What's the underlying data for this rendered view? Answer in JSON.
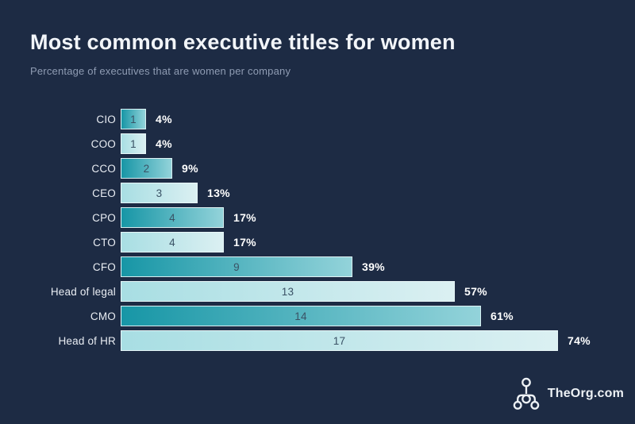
{
  "header": {
    "title": "Most common executive titles for women",
    "subtitle": "Percentage of executives that are women per company"
  },
  "chart_data": {
    "type": "bar",
    "orientation": "horizontal",
    "title": "Most common executive titles for women",
    "subtitle": "Percentage of executives that are women per company",
    "categories": [
      "CIO",
      "COO",
      "CCO",
      "CEO",
      "CPO",
      "CTO",
      "CFO",
      "Head of legal",
      "CMO",
      "Head of HR"
    ],
    "values": [
      1,
      1,
      2,
      3,
      4,
      4,
      9,
      13,
      14,
      17
    ],
    "percent_labels": [
      "4%",
      "4%",
      "9%",
      "13%",
      "17%",
      "17%",
      "39%",
      "57%",
      "61%",
      "74%"
    ],
    "value_axis_max": 17,
    "grid": "off",
    "legend": "none",
    "bar_style": "alternating dark/light teal gradient, counts inside bars, bold percent labels at bar ends"
  },
  "colors": {
    "background": "#1d2b44",
    "bar_dark_start": "#1796a6",
    "bar_dark_end": "#93d3da",
    "bar_light_start": "#a8dee3",
    "bar_light_end": "#dbf0f2",
    "bar_border": "#ebf7f8",
    "bar_value_text": "#3a5265",
    "percent_text": "#ffffff",
    "label_text": "#e9edf3",
    "title_text": "#f2f5f9",
    "subtitle_text": "#8f9cb3"
  },
  "footer": {
    "brand": "TheOrg.com",
    "logo_icon": "org-chart-icon"
  }
}
